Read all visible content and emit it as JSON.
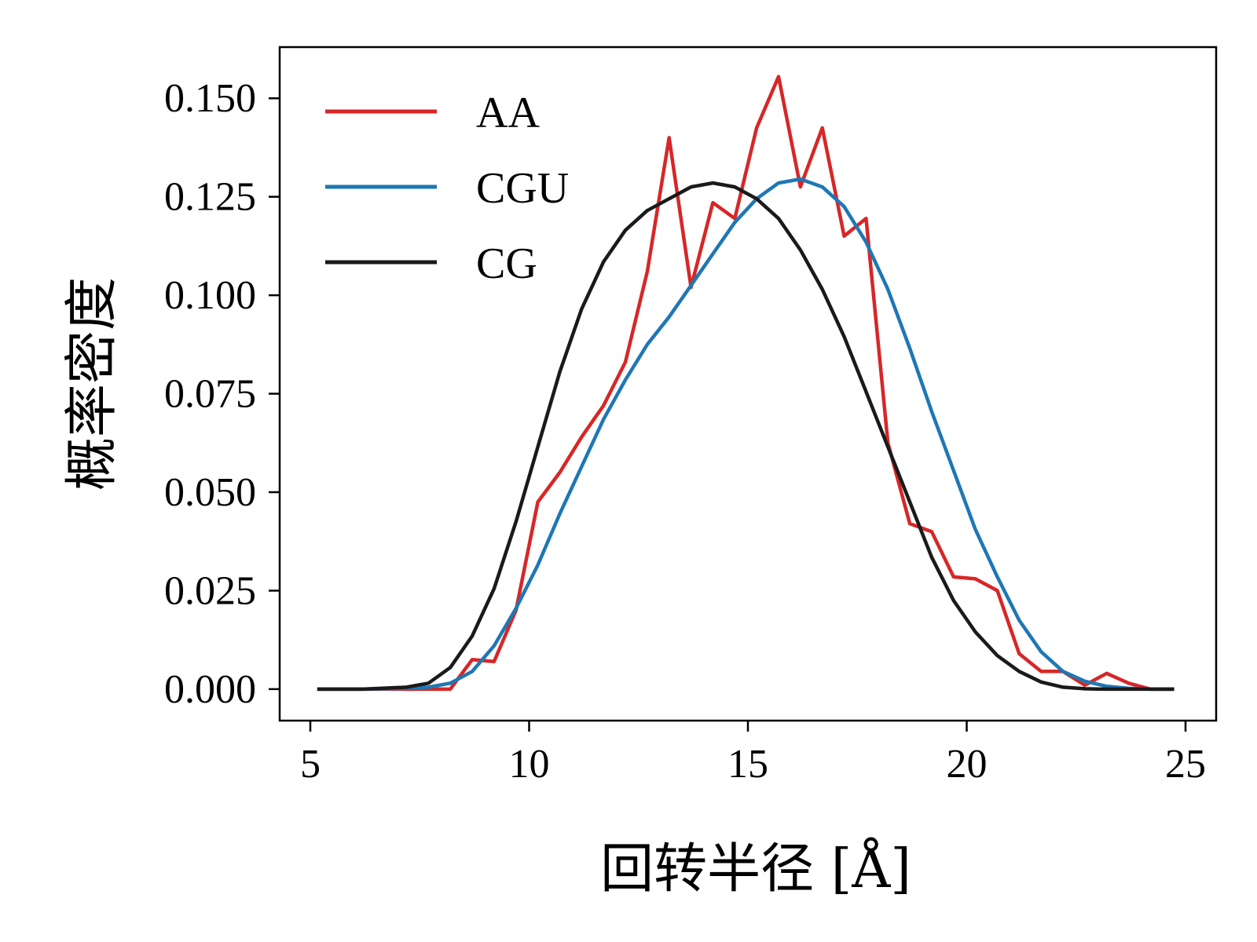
{
  "chart_data": {
    "type": "line",
    "xlabel": "回转半径 [Å]",
    "ylabel": "概率密度",
    "xlim": [
      4.3,
      25.7
    ],
    "ylim": [
      -0.008,
      0.163
    ],
    "xticks": [
      5,
      10,
      15,
      20,
      25
    ],
    "xtick_labels": [
      "5",
      "10",
      "15",
      "20",
      "25"
    ],
    "yticks": [
      0.0,
      0.025,
      0.05,
      0.075,
      0.1,
      0.125,
      0.15
    ],
    "ytick_labels": [
      "0.000",
      "0.025",
      "0.050",
      "0.075",
      "0.100",
      "0.125",
      "0.150"
    ],
    "grid": false,
    "legend_position": "top-left",
    "series": [
      {
        "name": "AA",
        "color": "#d62728",
        "x": [
          5.2,
          6.2,
          7.2,
          8.2,
          8.7,
          9.2,
          9.7,
          10.2,
          10.7,
          11.2,
          11.7,
          12.2,
          12.7,
          13.2,
          13.7,
          14.2,
          14.7,
          15.2,
          15.7,
          16.2,
          16.7,
          17.2,
          17.7,
          18.2,
          18.7,
          19.2,
          19.7,
          20.2,
          20.7,
          21.2,
          21.7,
          22.2,
          22.7,
          23.2,
          23.7,
          24.2,
          24.7
        ],
        "y": [
          0.0,
          0.0,
          0.0,
          0.0,
          0.0075,
          0.007,
          0.02,
          0.0475,
          0.055,
          0.064,
          0.072,
          0.083,
          0.106,
          0.14,
          0.102,
          0.1235,
          0.1195,
          0.1425,
          0.1555,
          0.1275,
          0.1425,
          0.115,
          0.1195,
          0.0625,
          0.042,
          0.04,
          0.0285,
          0.028,
          0.025,
          0.009,
          0.0045,
          0.0045,
          0.001,
          0.004,
          0.0015,
          0.0,
          0.0
        ]
      },
      {
        "name": "CGU",
        "color": "#1f77b4",
        "x": [
          5.2,
          6.2,
          7.2,
          7.7,
          8.2,
          8.7,
          9.2,
          9.7,
          10.2,
          10.7,
          11.2,
          11.7,
          12.2,
          12.7,
          13.2,
          13.7,
          14.2,
          14.7,
          15.2,
          15.7,
          16.2,
          16.7,
          17.2,
          17.7,
          18.2,
          18.7,
          19.2,
          19.7,
          20.2,
          20.7,
          21.2,
          21.7,
          22.2,
          22.7,
          23.2,
          23.7,
          24.2,
          24.7
        ],
        "y": [
          0.0,
          0.0,
          0.0002,
          0.0005,
          0.0015,
          0.0045,
          0.011,
          0.0205,
          0.0315,
          0.0445,
          0.0565,
          0.0685,
          0.0785,
          0.0875,
          0.0945,
          0.1025,
          0.1105,
          0.1185,
          0.1245,
          0.1285,
          0.1295,
          0.1275,
          0.1225,
          0.1135,
          0.1015,
          0.0865,
          0.0705,
          0.0555,
          0.0405,
          0.0285,
          0.0175,
          0.0095,
          0.0045,
          0.002,
          0.0007,
          0.0002,
          0.0,
          0.0
        ]
      },
      {
        "name": "CG",
        "color": "#1a1a1a",
        "x": [
          5.2,
          6.2,
          7.2,
          7.7,
          8.2,
          8.7,
          9.2,
          9.7,
          10.2,
          10.7,
          11.2,
          11.7,
          12.2,
          12.7,
          13.2,
          13.7,
          14.2,
          14.7,
          15.2,
          15.7,
          16.2,
          16.7,
          17.2,
          17.7,
          18.2,
          18.7,
          19.2,
          19.7,
          20.2,
          20.7,
          21.2,
          21.7,
          22.2,
          22.7,
          23.2,
          23.7,
          24.2,
          24.7
        ],
        "y": [
          0.0,
          0.0,
          0.0005,
          0.0015,
          0.0055,
          0.0135,
          0.0255,
          0.0425,
          0.0615,
          0.0805,
          0.0965,
          0.1085,
          0.1165,
          0.1215,
          0.1245,
          0.1275,
          0.1285,
          0.1275,
          0.1245,
          0.1195,
          0.1115,
          0.1015,
          0.0895,
          0.0755,
          0.0615,
          0.0475,
          0.0335,
          0.0225,
          0.0145,
          0.0085,
          0.0045,
          0.0018,
          0.0005,
          0.0001,
          0.0,
          0.0,
          0.0,
          0.0
        ]
      }
    ]
  }
}
